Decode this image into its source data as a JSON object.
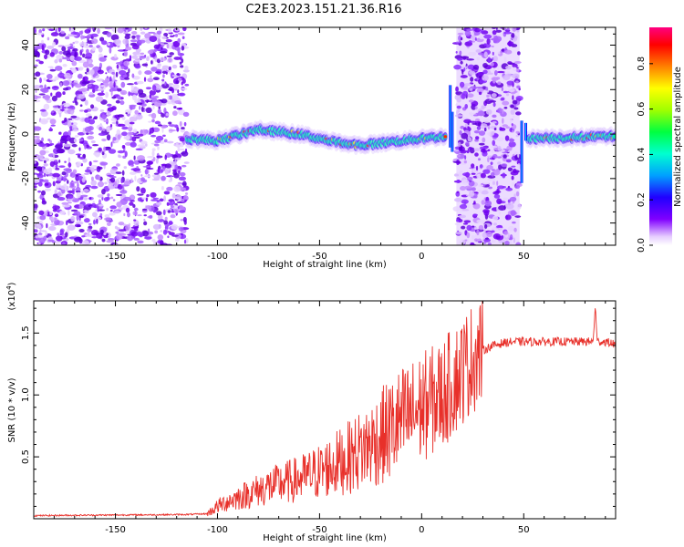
{
  "title": "C2E3.2023.151.21.36.R16",
  "chart_data": [
    {
      "type": "heatmap",
      "title": "C2E3.2023.151.21.36.R16",
      "xlabel": "Height of straight line (km)",
      "ylabel": "Frequency (Hz)",
      "xlim": [
        -190,
        95
      ],
      "ylim": [
        -50,
        48
      ],
      "x_ticks": [
        -150,
        -100,
        -50,
        0,
        50
      ],
      "y_ticks": [
        -40,
        -20,
        0,
        20,
        40
      ],
      "colorbar": {
        "label": "Normalized spectral amplitude",
        "range": [
          0,
          0.96
        ],
        "ticks": [
          0.0,
          0.2,
          0.4,
          0.6,
          0.8
        ],
        "colormap": [
          "#ffffff",
          "#e6ccff",
          "#8000ff",
          "#2000ff",
          "#00a0ff",
          "#00ffd0",
          "#00ff40",
          "#a0ff00",
          "#ffff00",
          "#ff8000",
          "#ff0000",
          "#ff0080"
        ]
      },
      "regions": [
        {
          "name": "noise",
          "x_range": [
            -190,
            -115
          ]
        },
        {
          "name": "signal",
          "x_range": [
            -115,
            12
          ],
          "y_center_km": [
            [
              -115,
              -2
            ],
            [
              -100,
              -3
            ],
            [
              -80,
              2
            ],
            [
              -60,
              0
            ],
            [
              -40,
              -4
            ],
            [
              -30,
              -5
            ],
            [
              -10,
              -3
            ],
            [
              0,
              -2
            ],
            [
              12,
              -1
            ]
          ]
        },
        {
          "name": "noise",
          "x_range": [
            17,
            48
          ]
        },
        {
          "name": "signal",
          "x_range": [
            52,
            95
          ],
          "y_center_km": [
            [
              52,
              -2
            ],
            [
              95,
              -1
            ]
          ]
        }
      ]
    },
    {
      "type": "line",
      "xlabel": "Height of straight line (km)",
      "ylabel": "SNR (10 * v/v)",
      "y_scale_label": "(x10",
      "y_scale_exponent": "4",
      "xlim": [
        -190,
        95
      ],
      "ylim": [
        0,
        17600
      ],
      "x_ticks": [
        -150,
        -100,
        -50,
        0,
        50
      ],
      "y_ticks": [
        5000,
        10000,
        15000
      ],
      "y_tick_labels": [
        "0.5",
        "1.0",
        "1.5"
      ],
      "line_color": "#e8302a",
      "series": [
        {
          "x": [
            -190,
            -170,
            -150,
            -130,
            -115,
            -105,
            -100,
            -95,
            -90,
            -85,
            -80,
            -75,
            -70,
            -65,
            -60,
            -55,
            -50,
            -45,
            -40,
            -35,
            -30,
            -25,
            -20,
            -15,
            -10,
            -5,
            0,
            5,
            10,
            15,
            20,
            25,
            30,
            35,
            40,
            45,
            50,
            55,
            60,
            65,
            70,
            75,
            80,
            84,
            85,
            86,
            90,
            95
          ],
          "values": [
            250,
            280,
            300,
            320,
            340,
            400,
            1000,
            1400,
            1700,
            2000,
            2300,
            2600,
            2800,
            3000,
            3200,
            3500,
            3800,
            4200,
            4600,
            5000,
            5500,
            6000,
            6600,
            7200,
            7800,
            8400,
            9000,
            9500,
            10000,
            11000,
            12000,
            13000,
            13600,
            14000,
            14200,
            14300,
            14300,
            14300,
            14300,
            14300,
            14300,
            14300,
            14300,
            14300,
            17200,
            14300,
            14300,
            14100
          ]
        }
      ]
    }
  ]
}
